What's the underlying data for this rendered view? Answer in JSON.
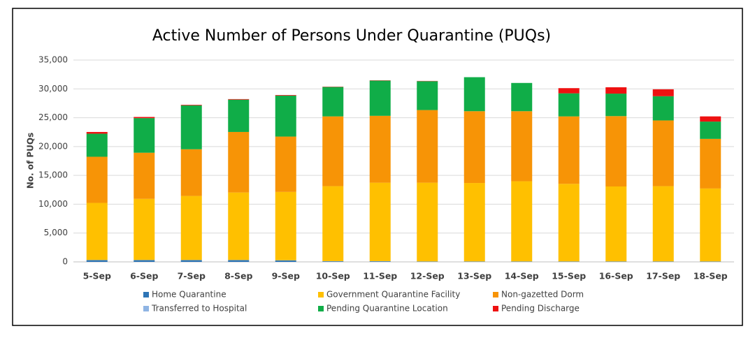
{
  "chart_data": {
    "type": "stacked_bar",
    "title": "Active Number of Persons Under Quarantine (PUQs)",
    "y_label": "No. of PUQs",
    "categories": [
      "5-Sep",
      "6-Sep",
      "7-Sep",
      "8-Sep",
      "9-Sep",
      "10-Sep",
      "11-Sep",
      "12-Sep",
      "13-Sep",
      "14-Sep",
      "15-Sep",
      "16-Sep",
      "17-Sep",
      "18-Sep"
    ],
    "series": [
      {
        "name": "Home  Quarantine",
        "color": "#2e75b6",
        "values": [
          300,
          300,
          300,
          300,
          250,
          100,
          100,
          50,
          50,
          50,
          50,
          50,
          50,
          50
        ]
      },
      {
        "name": "Transferred to Hospital",
        "color": "#8fb4e3",
        "values": [
          30,
          30,
          30,
          30,
          30,
          30,
          30,
          30,
          30,
          30,
          30,
          30,
          30,
          30
        ]
      },
      {
        "name": "Government Quarantine Facility",
        "color": "#ffc000",
        "values": [
          9900,
          10600,
          11100,
          11700,
          11850,
          13000,
          13600,
          13650,
          13600,
          13900,
          13450,
          13000,
          13050,
          12650
        ]
      },
      {
        "name": "Non-gazetted Dorm",
        "color": "#f79406",
        "values": [
          8000,
          8000,
          8100,
          10500,
          9600,
          12100,
          11600,
          12600,
          12450,
          12150,
          11700,
          12200,
          11400,
          8600
        ]
      },
      {
        "name": "Pending Quarantine Location",
        "color": "#10ad48",
        "values": [
          4000,
          6000,
          7600,
          5600,
          7100,
          5100,
          6100,
          5000,
          5900,
          4900,
          4000,
          3900,
          4200,
          3000
        ]
      },
      {
        "name": "Pending Discharge",
        "color": "#ee1111",
        "values": [
          300,
          200,
          100,
          100,
          100,
          50,
          50,
          50,
          0,
          0,
          900,
          1100,
          1200,
          900
        ]
      }
    ],
    "ylim": [
      0,
      35000
    ],
    "yticks": [
      0,
      {
        "value": 5000,
        "label": "5,000"
      },
      {
        "value": 10000,
        "label": "10,000"
      },
      {
        "value": 15000,
        "label": "15,000"
      },
      {
        "value": 20000,
        "label": "20,000"
      },
      {
        "value": 25000,
        "label": "25,000"
      },
      {
        "value": 30000,
        "label": "30,000"
      },
      {
        "value": 35000,
        "label": "35,000"
      }
    ],
    "grid": true
  }
}
